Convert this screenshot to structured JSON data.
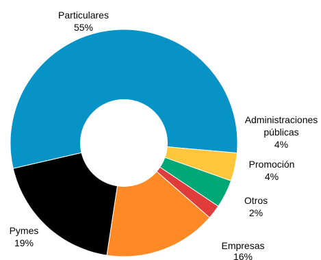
{
  "chart_data": {
    "type": "pie",
    "variant": "donut",
    "slices": [
      {
        "label": "Particulares",
        "line2": "",
        "value": 55,
        "pct": "55%",
        "color": "#0893C7"
      },
      {
        "label": "Administraciones",
        "line2": "públicas",
        "value": 4,
        "pct": "4%",
        "color": "#FEC73B"
      },
      {
        "label": "Promoción",
        "line2": "",
        "value": 4,
        "pct": "4%",
        "color": "#00A876"
      },
      {
        "label": "Otros",
        "line2": "",
        "value": 2,
        "pct": "2%",
        "color": "#E03C3C"
      },
      {
        "label": "Empresas",
        "line2": "",
        "value": 16,
        "pct": "16%",
        "color": "#FF8A25"
      },
      {
        "label": "Pymes",
        "line2": "",
        "value": 19,
        "pct": "19%",
        "color": "#000000"
      }
    ]
  }
}
